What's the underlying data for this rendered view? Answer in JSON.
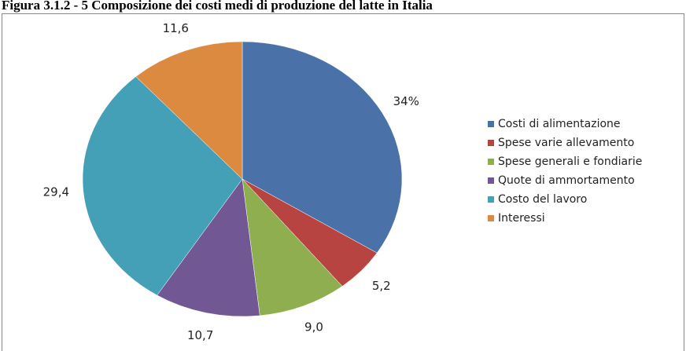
{
  "chart_data": {
    "type": "pie",
    "title": "Figura 3.1.2 - 5 Composizione dei costi medi di produzione del latte in Italia",
    "categories": [
      "Costi di alimentazione",
      "Spese varie allevamento",
      "Spese generali e fondiarie",
      "Quote di ammortamento",
      "Costo del lavoro",
      "Interessi"
    ],
    "values": [
      34,
      5.2,
      9.0,
      10.7,
      29.4,
      11.6
    ],
    "value_labels": [
      "34%",
      "5,2",
      "9,0",
      "10,7",
      "29,4",
      "11,6"
    ],
    "colors": [
      "#4a72a8",
      "#b84441",
      "#8fae4f",
      "#725795",
      "#43a0b6",
      "#dc8a3f"
    ],
    "legend": "right"
  }
}
